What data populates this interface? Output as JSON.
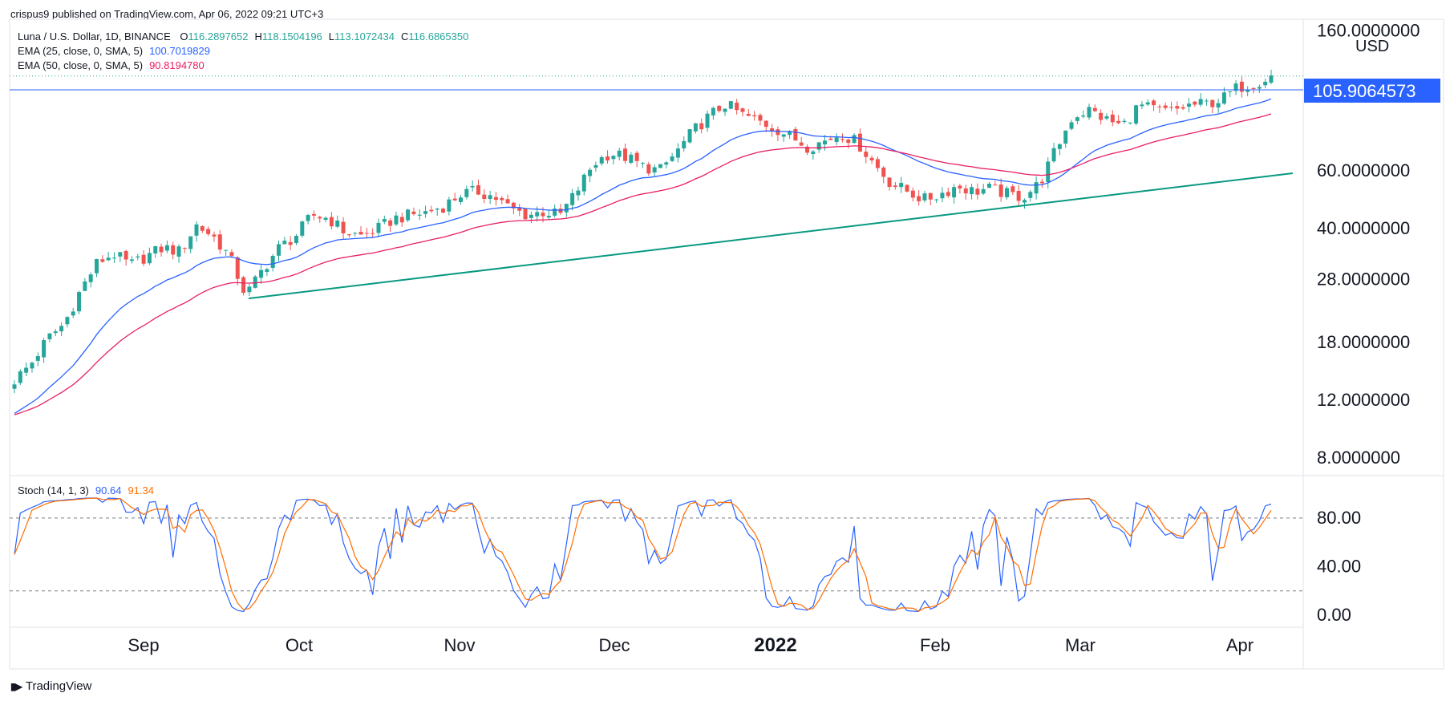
{
  "header": {
    "attribution": "crispus9 published on TradingView.com, Apr 06, 2022 09:21 UTC+3"
  },
  "legend": {
    "symbol": "Luna / U.S. Dollar, 1D, BINANCE",
    "ohlc": [
      {
        "label": "O",
        "value": "116.2897652"
      },
      {
        "label": "H",
        "value": "118.1504196"
      },
      {
        "label": "L",
        "value": "113.1072434"
      },
      {
        "label": "C",
        "value": "116.6865350"
      }
    ],
    "ema25_label": "EMA (25, close, 0, SMA, 5)",
    "ema25_value": "100.7019829",
    "ema50_label": "EMA (50, close, 0, SMA, 5)",
    "ema50_value": "90.8194780",
    "stoch_label": "Stoch (14, 1, 3)",
    "stoch_k": "90.64",
    "stoch_d": "91.34"
  },
  "colors": {
    "up": "#26a69a",
    "down": "#ef5350",
    "ema25": "#2962ff",
    "ema50": "#e91e63",
    "trendline": "#089981",
    "stoch_k": "#2962ff",
    "stoch_d": "#ff6d00",
    "price_badge": "#2962ff"
  },
  "footer": {
    "brand": "TradingView"
  },
  "chart_data": [
    {
      "type": "candlestick",
      "panel": "price",
      "scale": "log",
      "currency": "USD",
      "y_ticks": [
        "160.0000000",
        "60.0000000",
        "40.0000000",
        "28.0000000",
        "18.0000000",
        "12.0000000",
        "8.0000000"
      ],
      "last_price": "105.9064573",
      "resistance_level": 105.9,
      "x_ticks": [
        "Sep",
        "Oct",
        "Nov",
        "Dec",
        "2022",
        "Feb",
        "Mar",
        "Apr"
      ],
      "series": [
        {
          "name": "Luna / U.S. Dollar",
          "values_close_sampled": [
            13.8,
            15.5,
            18.5,
            20.5,
            26.0,
            31.5,
            33.5,
            31.0,
            33.0,
            35.0,
            34.0,
            41.0,
            38.0,
            33.0,
            25.0,
            30.0,
            35.0,
            38.0,
            44.0,
            43.0,
            39.0,
            38.0,
            40.0,
            43.0,
            44.0,
            45.0,
            47.0,
            51.0,
            52.0,
            50.0,
            46.0,
            44.0,
            45.0,
            44.0,
            52.0,
            63.0,
            68.0,
            66.0,
            62.0,
            60.0,
            68.0,
            79.0,
            88.0,
            96.0,
            89.0,
            85.0,
            81.0,
            76.0,
            71.0,
            74.0,
            78.0,
            73.0,
            63.0,
            55.0,
            52.0,
            49.0,
            51.0,
            54.0,
            52.0,
            53.0,
            51.0,
            50.0,
            55.0,
            70.0,
            88.0,
            92.0,
            86.0,
            82.0,
            95.0,
            92.0,
            91.0,
            95.0,
            96.0,
            99.0,
            108.0,
            111.0,
            116.7
          ]
        },
        {
          "name": "EMA (25, close, 0, SMA, 5)",
          "last": 100.7019829
        },
        {
          "name": "EMA (50, close, 0, SMA, 5)",
          "last": 90.819478
        }
      ],
      "trendline": {
        "from": {
          "date": "Sep 20",
          "price": 24.5
        },
        "to": {
          "date": "Apr 10",
          "price": 59.0
        }
      }
    },
    {
      "type": "line",
      "panel": "stochastic",
      "y_ticks": [
        "80.00",
        "40.00",
        "0.00"
      ],
      "levels": [
        80,
        20
      ],
      "series": [
        {
          "name": "%K",
          "last": 90.64
        },
        {
          "name": "%D",
          "last": 91.34
        }
      ]
    }
  ]
}
